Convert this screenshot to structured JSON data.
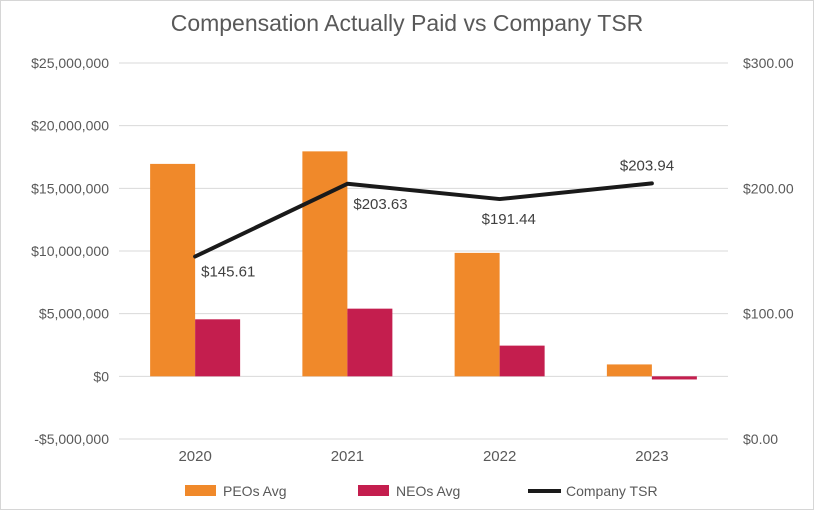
{
  "chart_data": {
    "type": "bar",
    "title": "Compensation Actually Paid vs Company TSR",
    "categories": [
      "2020",
      "2021",
      "2022",
      "2023"
    ],
    "series": [
      {
        "name": "PEOs Avg",
        "kind": "bar",
        "axis": "left",
        "color": "#F0892A",
        "values": [
          16950000,
          17950000,
          9850000,
          950000
        ]
      },
      {
        "name": "NEOs Avg",
        "kind": "bar",
        "axis": "left",
        "color": "#C41E4E",
        "values": [
          4550000,
          5400000,
          2450000,
          -250000
        ]
      },
      {
        "name": "Company TSR",
        "kind": "line",
        "axis": "right",
        "color": "#1A1A1A",
        "values": [
          145.61,
          203.63,
          191.44,
          203.94
        ],
        "labels": [
          "$145.61",
          "$203.63",
          "$191.44",
          "$203.94"
        ]
      }
    ],
    "left_axis": {
      "ylim": [
        -5000000,
        25000000
      ],
      "ticks": [
        -5000000,
        0,
        5000000,
        10000000,
        15000000,
        20000000,
        25000000
      ],
      "tick_labels": [
        "-$5,000,000",
        "$0",
        "$5,000,000",
        "$10,000,000",
        "$15,000,000",
        "$20,000,000",
        "$25,000,000"
      ]
    },
    "right_axis": {
      "ylim": [
        0,
        300
      ],
      "ticks": [
        0,
        100,
        200,
        300
      ],
      "tick_labels": [
        "$0.00",
        "$100.00",
        "$200.00",
        "$300.00"
      ]
    },
    "grid": true,
    "legend_position": "bottom"
  }
}
